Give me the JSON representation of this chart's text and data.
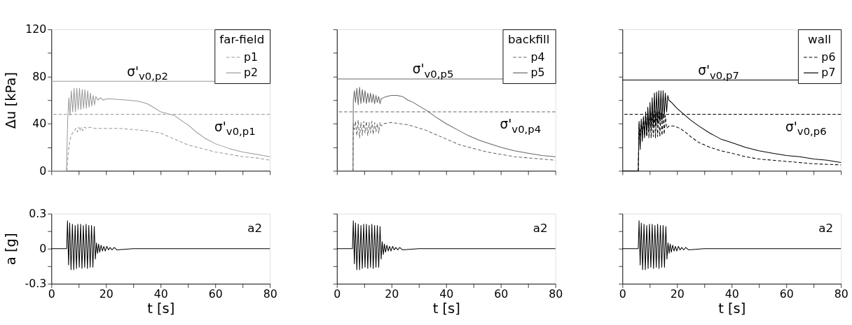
{
  "chart_data": [
    {
      "type": "line",
      "ylabel": "Δu [kPa]",
      "legend_title": "far-field",
      "legend": "top right",
      "tick_labels": "y",
      "grid": false,
      "marker": "none",
      "xlim": [
        0,
        80
      ],
      "xticks": [
        0,
        {
          "value": 10,
          "label": null
        },
        20,
        {
          "value": 30,
          "label": null
        },
        40,
        {
          "value": 50,
          "label": null
        },
        60,
        {
          "value": 70,
          "label": null
        },
        80
      ],
      "ylim": [
        0,
        120
      ],
      "yticks": [
        0,
        {
          "value": 20,
          "label": null
        },
        40,
        {
          "value": 60,
          "label": null
        },
        80,
        {
          "value": 100,
          "label": null
        },
        120
      ],
      "ref_lines": [
        {
          "axis": "y",
          "value": 76,
          "label": "σ'$_{v0,p2}$",
          "color": "#999999",
          "line_style": "solid"
        },
        {
          "axis": "y",
          "value": 48,
          "label": "σ'$_{v0,p1}$",
          "color": "#999999",
          "line_style": "dashed"
        }
      ],
      "series": [
        {
          "name": "p1",
          "color": "#999999",
          "line_style": "dashed",
          "x": [
            0,
            5.7,
            6.0,
            6.5,
            7,
            7.5,
            8,
            8.5,
            9,
            9.5,
            10,
            10.5,
            11,
            11.5,
            12,
            13,
            14,
            16,
            20,
            25,
            30,
            35,
            40,
            45,
            50,
            55,
            60,
            65,
            70,
            75,
            80
          ],
          "values": [
            0,
            0,
            10,
            22,
            28,
            31,
            33,
            34,
            36,
            33,
            37,
            34,
            37,
            34,
            37,
            36,
            37,
            36,
            36,
            36,
            35,
            34,
            32,
            27,
            22,
            19,
            16,
            14,
            12,
            11,
            9
          ]
        },
        {
          "name": "p2",
          "color": "#999999",
          "line_style": "solid",
          "x": [
            0,
            5.5,
            6.0,
            6.4,
            6.8,
            7.3,
            7.8,
            8.3,
            8.8,
            9.3,
            9.8,
            10.3,
            10.8,
            11.3,
            11.8,
            12.3,
            12.8,
            13.3,
            13.8,
            14.3,
            14.8,
            15.3,
            15.8,
            16.3,
            17,
            18,
            19,
            20,
            22,
            25,
            28,
            32,
            35,
            38,
            40,
            45,
            48,
            50,
            53,
            56,
            60,
            65,
            70,
            75,
            80
          ],
          "values": [
            0,
            0,
            45,
            62,
            47,
            68,
            50,
            70,
            50,
            70,
            52,
            70,
            52,
            69,
            53,
            69,
            53,
            68,
            54,
            66,
            55,
            64,
            56,
            63,
            60,
            62,
            60,
            61,
            61,
            60.5,
            60,
            59,
            57,
            53,
            50,
            47,
            42,
            39,
            33,
            28,
            23,
            19,
            16,
            14,
            12
          ]
        }
      ]
    },
    {
      "type": "line",
      "legend_title": "backfill",
      "legend": "top right",
      "tick_labels": false,
      "grid": false,
      "marker": "none",
      "xlim": [
        0,
        80
      ],
      "xticks": [
        0,
        {
          "value": 10,
          "label": null
        },
        20,
        {
          "value": 30,
          "label": null
        },
        40,
        {
          "value": 50,
          "label": null
        },
        60,
        {
          "value": 70,
          "label": null
        },
        80
      ],
      "ylim": [
        0,
        120
      ],
      "yticks": [
        0,
        {
          "value": 20,
          "label": null
        },
        40,
        {
          "value": 60,
          "label": null
        },
        80,
        {
          "value": 100,
          "label": null
        },
        120
      ],
      "ref_lines": [
        {
          "axis": "y",
          "value": 78,
          "label": "σ'$_{v0,p5}$",
          "color": "#666666",
          "line_style": "solid"
        },
        {
          "axis": "y",
          "value": 50,
          "label": "σ'$_{v0,p4}$",
          "color": "#666666",
          "line_style": "dashed"
        }
      ],
      "series": [
        {
          "name": "p4",
          "color": "#666666",
          "line_style": "dashed",
          "x": [
            0,
            5.9,
            6.0,
            6.4,
            6.8,
            7.3,
            7.8,
            8.3,
            8.8,
            9.3,
            9.8,
            10.3,
            10.8,
            11.3,
            11.8,
            12.3,
            12.8,
            13.3,
            13.8,
            14.3,
            14.8,
            15.3,
            15.8,
            16.2,
            17,
            20,
            23,
            26,
            29,
            32,
            35,
            40,
            45,
            50,
            55,
            60,
            65,
            70,
            75,
            80
          ],
          "values": [
            0,
            0,
            40,
            35,
            42,
            30,
            43,
            28,
            41,
            30,
            42,
            32,
            42,
            30,
            41,
            32,
            42,
            31,
            41,
            33,
            40,
            32,
            41,
            38,
            40,
            41,
            40,
            39,
            37,
            35,
            32,
            27,
            22,
            19,
            16,
            14,
            12,
            11,
            10,
            9
          ]
        },
        {
          "name": "p5",
          "color": "#666666",
          "line_style": "solid",
          "x": [
            0,
            5.9,
            6.0,
            6.4,
            6.8,
            7.3,
            7.8,
            8.3,
            8.8,
            9.3,
            9.8,
            10.3,
            10.8,
            11.3,
            11.8,
            12.3,
            12.8,
            13.3,
            13.8,
            14.3,
            14.8,
            15.3,
            15.8,
            16.2,
            17,
            18,
            20,
            22,
            24,
            26,
            28,
            30,
            33,
            36,
            40,
            44,
            48,
            52,
            56,
            60,
            65,
            70,
            75,
            80
          ],
          "values": [
            0,
            0,
            60,
            68,
            58,
            70,
            56,
            71,
            57,
            69,
            58,
            68,
            57,
            66,
            58,
            66,
            58,
            65,
            57,
            64,
            58,
            63,
            57,
            61,
            62,
            63,
            64,
            64,
            63,
            60,
            58,
            55,
            51,
            46,
            40,
            35,
            30,
            26,
            23,
            20,
            17,
            15,
            13,
            12
          ]
        }
      ]
    },
    {
      "type": "line",
      "legend_title": "wall",
      "legend": "top right",
      "tick_labels": false,
      "grid": false,
      "marker": "none",
      "xlim": [
        0,
        80
      ],
      "xticks": [
        0,
        {
          "value": 10,
          "label": null
        },
        20,
        {
          "value": 30,
          "label": null
        },
        40,
        {
          "value": 50,
          "label": null
        },
        60,
        {
          "value": 70,
          "label": null
        },
        80
      ],
      "ylim": [
        0,
        120
      ],
      "yticks": [
        0,
        {
          "value": 20,
          "label": null
        },
        40,
        {
          "value": 60,
          "label": null
        },
        80,
        {
          "value": 100,
          "label": null
        },
        120
      ],
      "ref_lines": [
        {
          "axis": "y",
          "value": 77,
          "label": "σ'$_{v0,p7}$",
          "color": "#000000",
          "line_style": "solid"
        },
        {
          "axis": "y",
          "value": 48,
          "label": "σ'$_{v0,p6}$",
          "color": "#000000",
          "line_style": "dashed"
        }
      ],
      "series": [
        {
          "name": "p6",
          "color": "#000000",
          "line_style": "dashed",
          "x": [
            0,
            5.8,
            6.1,
            6.5,
            6.9,
            7.3,
            7.7,
            8.1,
            8.5,
            8.9,
            9.3,
            9.7,
            10.1,
            10.5,
            10.9,
            11.3,
            11.7,
            12.1,
            12.5,
            12.9,
            13.3,
            13.7,
            14.1,
            14.5,
            14.9,
            15.3,
            15.7,
            16.2,
            17,
            19,
            21,
            23,
            25,
            28,
            32,
            36,
            40,
            45,
            50,
            55,
            60,
            70,
            80
          ],
          "values": [
            0,
            0,
            40,
            30,
            42,
            32,
            45,
            30,
            47,
            29,
            48,
            28,
            50,
            28,
            50,
            29,
            51,
            28,
            50,
            29,
            50,
            29,
            49,
            30,
            48,
            31,
            47,
            36,
            38,
            38,
            36,
            33,
            29,
            24,
            20,
            17,
            15,
            12,
            10,
            9,
            8,
            6,
            5
          ]
        },
        {
          "name": "p7",
          "color": "#000000",
          "line_style": "solid",
          "x": [
            0,
            5.8,
            6.1,
            6.5,
            6.9,
            7.3,
            7.7,
            8.1,
            8.5,
            8.9,
            9.3,
            9.7,
            10.1,
            10.5,
            10.9,
            11.3,
            11.7,
            12.1,
            12.5,
            12.9,
            13.3,
            13.7,
            14.1,
            14.5,
            14.9,
            15.3,
            15.7,
            16.2,
            16.6,
            17,
            18,
            20,
            22,
            25,
            28,
            32,
            36,
            40,
            45,
            50,
            55,
            60,
            65,
            70,
            75,
            80
          ],
          "values": [
            0,
            0,
            42,
            18,
            44,
            25,
            46,
            28,
            50,
            30,
            54,
            33,
            58,
            35,
            62,
            37,
            66,
            38,
            67,
            40,
            68,
            42,
            68,
            43,
            68,
            45,
            66,
            50,
            64,
            60,
            58,
            53,
            49,
            43,
            38,
            32,
            27,
            24,
            20,
            17,
            15,
            13,
            12,
            10,
            9,
            7
          ]
        }
      ]
    },
    {
      "type": "line",
      "ylabel": "a [g]",
      "xlabel": "t [s]",
      "grid": false,
      "marker": "none",
      "annotations": [
        "a2"
      ],
      "xlim": [
        0,
        80
      ],
      "xticks": [
        0,
        {
          "value": 10,
          "label": null
        },
        20,
        {
          "value": 30,
          "label": null
        },
        40,
        {
          "value": 50,
          "label": null
        },
        60,
        {
          "value": 70,
          "label": null
        },
        80
      ],
      "ylim": [
        -0.3,
        0.3
      ],
      "yticks": [
        -0.3,
        {
          "value": -0.15,
          "label": null
        },
        0,
        {
          "value": 0.15,
          "label": null
        },
        0.3
      ],
      "series": [
        {
          "color": "#000000",
          "line_style": "solid",
          "x": [
            0,
            5.6,
            5.9,
            6.3,
            6.7,
            7.2,
            7.7,
            8.2,
            8.7,
            9.2,
            9.7,
            10.2,
            10.7,
            11.2,
            11.7,
            12.2,
            12.7,
            13.2,
            13.7,
            14.2,
            14.7,
            15.2,
            15.7,
            16.1,
            16.5,
            16.9,
            17.3,
            17.7,
            18.2,
            18.7,
            19.2,
            19.7,
            20.3,
            20.9,
            21.5,
            22.2,
            23,
            24,
            30,
            80
          ],
          "values": [
            0,
            0,
            0.24,
            -0.14,
            0.22,
            -0.18,
            0.21,
            -0.18,
            0.2,
            -0.17,
            0.21,
            -0.16,
            0.21,
            -0.17,
            0.2,
            -0.16,
            0.21,
            -0.17,
            0.2,
            -0.16,
            0.2,
            -0.16,
            0.19,
            -0.09,
            0.05,
            -0.04,
            0.04,
            -0.03,
            0.03,
            -0.02,
            0.02,
            -0.02,
            0.02,
            -0.01,
            0.01,
            -0.01,
            0.01,
            -0.01,
            0,
            0
          ]
        }
      ]
    },
    {
      "type": "line",
      "xlabel": "t [s]",
      "tick_labels": "x",
      "grid": false,
      "marker": "none",
      "annotations": [
        "a2"
      ],
      "xlim": [
        0,
        80
      ],
      "xticks": [
        0,
        {
          "value": 10,
          "label": null
        },
        20,
        {
          "value": 30,
          "label": null
        },
        40,
        {
          "value": 50,
          "label": null
        },
        60,
        {
          "value": 70,
          "label": null
        },
        80
      ],
      "ylim": [
        -0.3,
        0.3
      ],
      "yticks": [
        -0.3,
        {
          "value": -0.15,
          "label": null
        },
        0,
        {
          "value": 0.15,
          "label": null
        },
        0.3
      ],
      "series": [
        {
          "color": "#000000",
          "line_style": "solid",
          "x": [
            0,
            5.7,
            6.0,
            6.4,
            6.8,
            7.3,
            7.8,
            8.3,
            8.8,
            9.3,
            9.8,
            10.3,
            10.8,
            11.3,
            11.8,
            12.3,
            12.8,
            13.3,
            13.8,
            14.3,
            14.8,
            15.3,
            15.8,
            16.2,
            16.6,
            17.0,
            17.4,
            17.8,
            18.3,
            18.8,
            19.3,
            19.8,
            20.4,
            21,
            21.6,
            22.3,
            23,
            24,
            30,
            80
          ],
          "values": [
            0,
            0,
            0.24,
            -0.13,
            0.22,
            -0.18,
            0.21,
            -0.18,
            0.2,
            -0.17,
            0.21,
            -0.16,
            0.21,
            -0.17,
            0.2,
            -0.16,
            0.21,
            -0.17,
            0.2,
            -0.16,
            0.2,
            -0.16,
            0.19,
            -0.09,
            0.06,
            -0.05,
            0.04,
            -0.03,
            0.03,
            -0.02,
            0.02,
            -0.02,
            0.02,
            -0.01,
            0.01,
            -0.01,
            0.01,
            -0.01,
            0,
            0
          ]
        }
      ]
    },
    {
      "type": "line",
      "xlabel": "t [s]",
      "tick_labels": "x",
      "grid": false,
      "marker": "none",
      "annotations": [
        "a2"
      ],
      "xlim": [
        0,
        80
      ],
      "xticks": [
        0,
        {
          "value": 10,
          "label": null
        },
        20,
        {
          "value": 30,
          "label": null
        },
        40,
        {
          "value": 50,
          "label": null
        },
        60,
        {
          "value": 70,
          "label": null
        },
        80
      ],
      "ylim": [
        -0.3,
        0.3
      ],
      "yticks": [
        -0.3,
        {
          "value": -0.15,
          "label": null
        },
        0,
        {
          "value": 0.15,
          "label": null
        },
        0.3
      ],
      "series": [
        {
          "color": "#000000",
          "line_style": "solid",
          "x": [
            0,
            5.8,
            6.1,
            6.5,
            6.9,
            7.4,
            7.9,
            8.4,
            8.9,
            9.4,
            9.9,
            10.4,
            10.9,
            11.4,
            11.9,
            12.4,
            12.9,
            13.4,
            13.9,
            14.4,
            14.9,
            15.4,
            15.9,
            16.3,
            16.7,
            17.1,
            17.5,
            17.9,
            18.4,
            18.9,
            19.4,
            19.9,
            20.5,
            21.1,
            21.7,
            22.4,
            23.2,
            24.2,
            30,
            80
          ],
          "values": [
            0,
            0,
            0.24,
            -0.14,
            0.22,
            -0.18,
            0.21,
            -0.18,
            0.2,
            -0.17,
            0.21,
            -0.16,
            0.21,
            -0.17,
            0.2,
            -0.16,
            0.21,
            -0.17,
            0.2,
            -0.16,
            0.2,
            -0.16,
            0.19,
            -0.09,
            0.05,
            -0.04,
            0.04,
            -0.03,
            0.03,
            -0.02,
            0.02,
            -0.02,
            0.02,
            -0.01,
            0.01,
            -0.01,
            0.01,
            -0.01,
            0,
            0
          ]
        }
      ]
    }
  ]
}
